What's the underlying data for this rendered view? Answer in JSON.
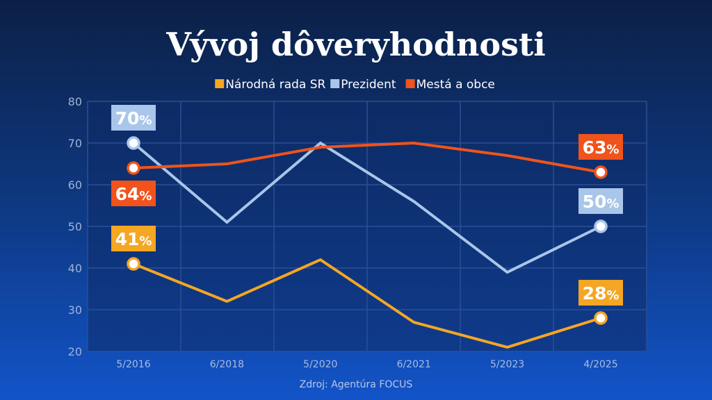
{
  "chart_data": {
    "type": "line",
    "title": "Vývoj dôveryhodnosti",
    "categories": [
      "5/2016",
      "6/2018",
      "5/2020",
      "6/2021",
      "5/2023",
      "4/2025"
    ],
    "ylim": [
      20,
      80
    ],
    "yticks": [
      20,
      30,
      40,
      50,
      60,
      70,
      80
    ],
    "grid": true,
    "legend_position": "top-center",
    "series": [
      {
        "name": "Národná rada SR",
        "color": "#f5a623",
        "values": [
          41,
          32,
          42,
          27,
          21,
          28
        ],
        "end_labels": {
          "start": "41",
          "end": "28"
        }
      },
      {
        "name": "Prezident",
        "color": "#a9c6ea",
        "values": [
          70,
          51,
          70,
          56,
          39,
          50
        ],
        "end_labels": {
          "start": "70",
          "end": "50"
        }
      },
      {
        "name": "Mestá a obce",
        "color": "#f0531c",
        "values": [
          64,
          65,
          69,
          70,
          67,
          63
        ],
        "end_labels": {
          "start": "64",
          "end": "63"
        }
      }
    ],
    "percent_sign": "%",
    "source": "Zdroj: Agentúra FOCUS"
  }
}
